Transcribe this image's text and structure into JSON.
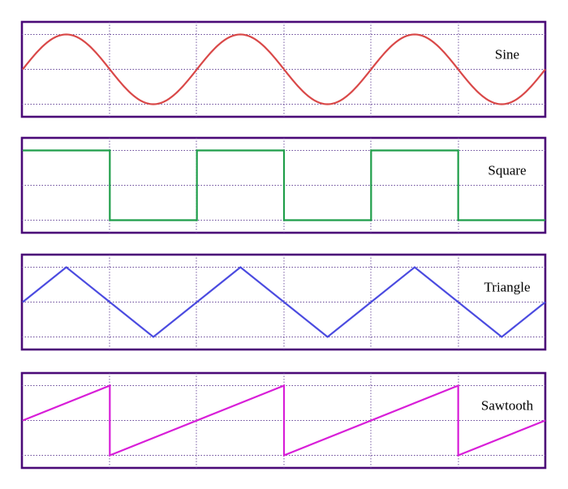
{
  "chart_data": [
    {
      "type": "line",
      "label": "Sine",
      "color": "#d94848",
      "wave": "sine",
      "x_range": [
        0,
        3
      ],
      "ylim": [
        -1,
        1
      ],
      "period": 1,
      "points": [
        [
          0,
          0
        ],
        [
          0.25,
          1
        ],
        [
          0.5,
          0
        ],
        [
          0.75,
          -1
        ],
        [
          1,
          0
        ],
        [
          1.25,
          1
        ],
        [
          1.5,
          0
        ],
        [
          1.75,
          -1
        ],
        [
          2,
          0
        ],
        [
          2.25,
          1
        ],
        [
          2.5,
          0
        ],
        [
          2.75,
          -1
        ],
        [
          3,
          0
        ]
      ],
      "grid": true
    },
    {
      "type": "line",
      "label": "Square",
      "color": "#1f9e4a",
      "wave": "square",
      "x_range": [
        0,
        3
      ],
      "ylim": [
        -1,
        1
      ],
      "period": 1,
      "points": [
        [
          0,
          1
        ],
        [
          0.5,
          1
        ],
        [
          0.5,
          -1
        ],
        [
          1,
          -1
        ],
        [
          1,
          1
        ],
        [
          1.5,
          1
        ],
        [
          1.5,
          -1
        ],
        [
          2,
          -1
        ],
        [
          2,
          1
        ],
        [
          2.5,
          1
        ],
        [
          2.5,
          -1
        ],
        [
          3,
          -1
        ]
      ],
      "grid": true
    },
    {
      "type": "line",
      "label": "Triangle",
      "color": "#4b4be0",
      "wave": "triangle",
      "x_range": [
        0,
        3
      ],
      "ylim": [
        -1,
        1
      ],
      "period": 1,
      "points": [
        [
          0,
          0
        ],
        [
          0.25,
          1
        ],
        [
          0.75,
          -1
        ],
        [
          1.25,
          1
        ],
        [
          1.75,
          -1
        ],
        [
          2.25,
          1
        ],
        [
          2.75,
          -1
        ],
        [
          3,
          0
        ]
      ],
      "grid": true
    },
    {
      "type": "line",
      "label": "Sawtooth",
      "color": "#d81ed8",
      "wave": "sawtooth",
      "x_range": [
        0,
        3
      ],
      "ylim": [
        -1,
        1
      ],
      "period": 1,
      "points": [
        [
          0,
          0
        ],
        [
          0.5,
          1
        ],
        [
          0.5,
          -1
        ],
        [
          1.5,
          1
        ],
        [
          1.5,
          -1
        ],
        [
          2.5,
          1
        ],
        [
          2.5,
          -1
        ],
        [
          3,
          0
        ]
      ],
      "grid": true
    }
  ]
}
